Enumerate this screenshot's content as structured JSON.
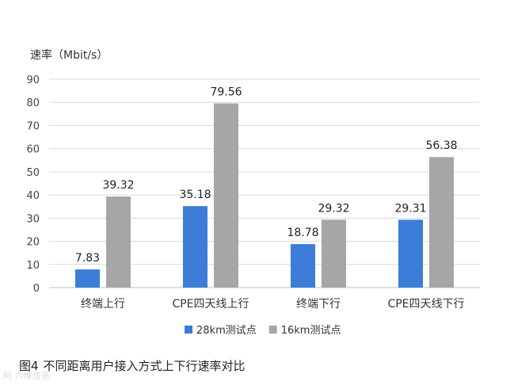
{
  "caption": {
    "figure_label": "图4",
    "text": "不同距离用户接入方式上下行速率对比"
  },
  "watermark": "阿 六维资讯",
  "chart_data": {
    "type": "bar",
    "ylabel": "速率（Mbit/s）",
    "xlabel": "",
    "ylim": [
      0,
      90
    ],
    "yticks": [
      0,
      10,
      20,
      30,
      40,
      50,
      60,
      70,
      80,
      90
    ],
    "grid": true,
    "legend_position": "bottom",
    "categories": [
      "终端上行",
      "CPE四天线上行",
      "终端下行",
      "CPE四天线下行"
    ],
    "series": [
      {
        "name": "28km测试点",
        "color": "#3b7dd8",
        "values": [
          7.83,
          35.18,
          18.78,
          29.31
        ],
        "labels": [
          "7.83",
          "35.18",
          "18.78",
          "29.31"
        ]
      },
      {
        "name": "16km测试点",
        "color": "#a6a6a6",
        "values": [
          39.32,
          79.56,
          29.32,
          56.38
        ],
        "labels": [
          "39.32",
          "79.56",
          "29.32",
          "56.38"
        ]
      }
    ]
  }
}
